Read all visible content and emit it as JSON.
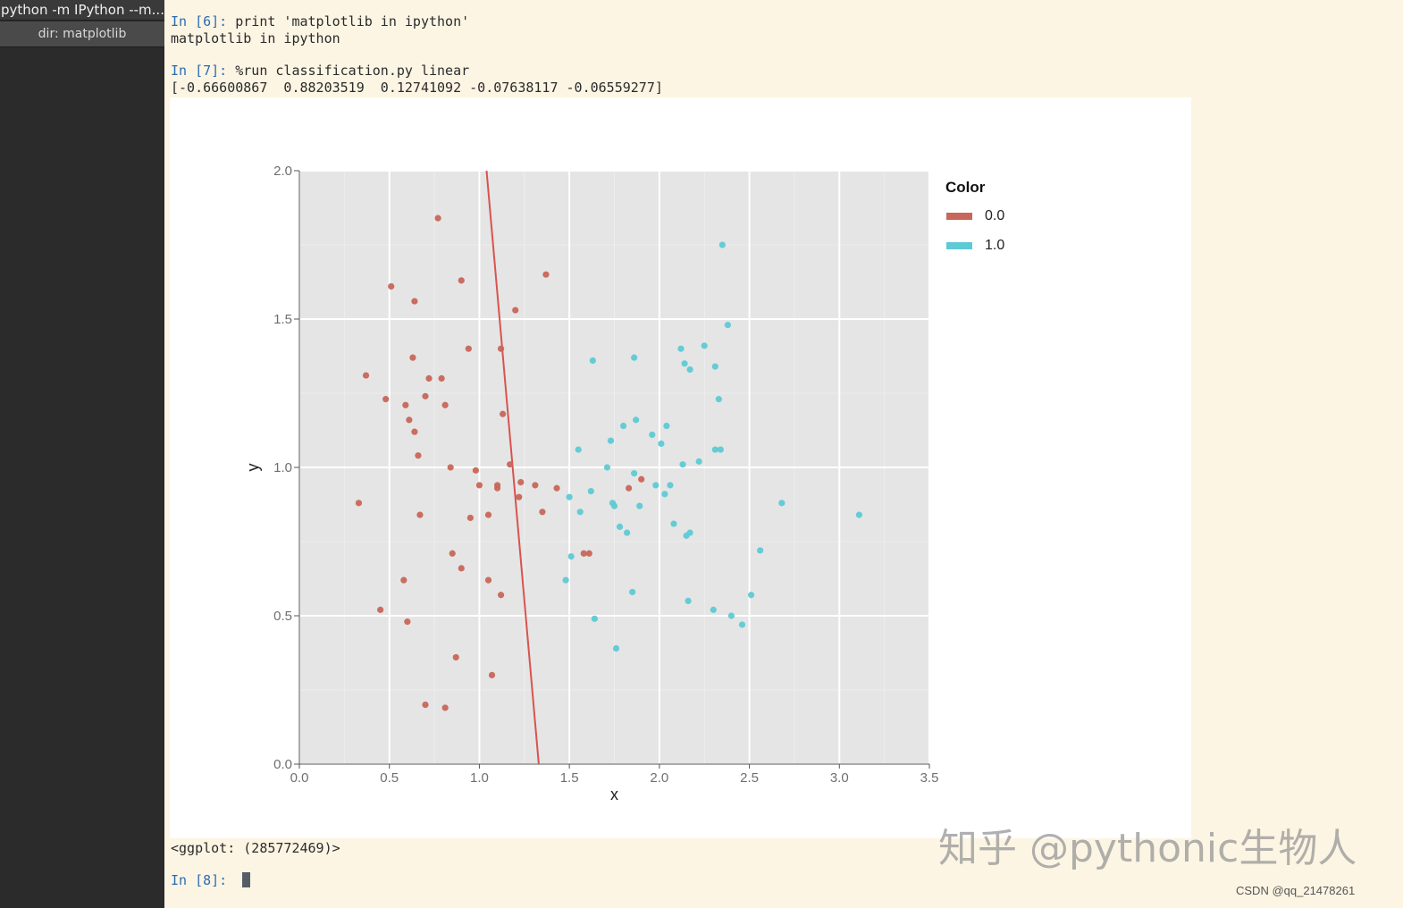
{
  "sidebar": {
    "tab_title": "python -m IPython --m...",
    "dir_label": "dir: matplotlib"
  },
  "console": {
    "lines": [
      {
        "prompt": "In [6]: ",
        "text": "print 'matplotlib in ipython'"
      },
      {
        "prompt": "",
        "text": "matplotlib in ipython"
      },
      {
        "prompt": "In [7]: ",
        "text": "%run classification.py linear"
      },
      {
        "prompt": "",
        "text": "[-0.66600867  0.88203519  0.12741092 -0.07638117 -0.06559277]"
      },
      {
        "prompt": "",
        "text": "<ggplot: (285772469)>"
      },
      {
        "prompt": "In [8]: ",
        "text": ""
      }
    ]
  },
  "chart_data": {
    "type": "scatter",
    "title": "",
    "xlabel": "x",
    "ylabel": "y",
    "xlim": [
      0,
      3.5
    ],
    "ylim": [
      0,
      2.0
    ],
    "x_ticks": [
      "0.0",
      "0.5",
      "1.0",
      "1.5",
      "2.0",
      "2.5",
      "3.0",
      "3.5"
    ],
    "y_ticks": [
      "0.0",
      "0.5",
      "1.0",
      "1.5",
      "2.0"
    ],
    "grid": true,
    "legend": {
      "title": "Color",
      "position": "right",
      "entries": [
        "0.0",
        "1.0"
      ]
    },
    "series": [
      {
        "name": "0.0",
        "color": "#c8665a",
        "points": [
          [
            0.33,
            0.88
          ],
          [
            0.37,
            1.31
          ],
          [
            0.45,
            0.52
          ],
          [
            0.48,
            1.23
          ],
          [
            0.51,
            1.61
          ],
          [
            0.58,
            0.62
          ],
          [
            0.59,
            1.21
          ],
          [
            0.6,
            0.48
          ],
          [
            0.61,
            1.16
          ],
          [
            0.63,
            1.37
          ],
          [
            0.64,
            1.12
          ],
          [
            0.64,
            1.56
          ],
          [
            0.66,
            1.04
          ],
          [
            0.67,
            0.84
          ],
          [
            0.7,
            0.2
          ],
          [
            0.7,
            1.24
          ],
          [
            0.72,
            1.3
          ],
          [
            0.77,
            1.84
          ],
          [
            0.79,
            1.3
          ],
          [
            0.81,
            1.21
          ],
          [
            0.81,
            0.19
          ],
          [
            0.84,
            1.0
          ],
          [
            0.85,
            0.71
          ],
          [
            0.87,
            0.36
          ],
          [
            0.9,
            0.66
          ],
          [
            0.9,
            1.63
          ],
          [
            0.94,
            1.4
          ],
          [
            0.95,
            0.83
          ],
          [
            0.98,
            0.99
          ],
          [
            1.0,
            0.94
          ],
          [
            1.05,
            0.84
          ],
          [
            1.05,
            0.62
          ],
          [
            1.07,
            0.3
          ],
          [
            1.1,
            0.94
          ],
          [
            1.1,
            0.93
          ],
          [
            1.12,
            1.4
          ],
          [
            1.12,
            0.57
          ],
          [
            1.13,
            1.18
          ],
          [
            1.17,
            1.01
          ],
          [
            1.2,
            1.53
          ],
          [
            1.22,
            0.9
          ],
          [
            1.23,
            0.95
          ],
          [
            1.31,
            0.94
          ],
          [
            1.35,
            0.85
          ],
          [
            1.37,
            1.65
          ],
          [
            1.43,
            0.93
          ],
          [
            1.58,
            0.71
          ],
          [
            1.61,
            0.71
          ],
          [
            1.83,
            0.93
          ],
          [
            1.9,
            0.96
          ]
        ]
      },
      {
        "name": "1.0",
        "color": "#5ecad4",
        "points": [
          [
            1.48,
            0.62
          ],
          [
            1.5,
            0.9
          ],
          [
            1.51,
            0.7
          ],
          [
            1.55,
            1.06
          ],
          [
            1.56,
            0.85
          ],
          [
            1.62,
            0.92
          ],
          [
            1.63,
            1.36
          ],
          [
            1.64,
            0.49
          ],
          [
            1.71,
            1.0
          ],
          [
            1.73,
            1.09
          ],
          [
            1.74,
            0.88
          ],
          [
            1.75,
            0.87
          ],
          [
            1.76,
            0.39
          ],
          [
            1.78,
            0.8
          ],
          [
            1.8,
            1.14
          ],
          [
            1.82,
            0.78
          ],
          [
            1.85,
            0.58
          ],
          [
            1.86,
            1.37
          ],
          [
            1.86,
            0.98
          ],
          [
            1.87,
            1.16
          ],
          [
            1.89,
            0.87
          ],
          [
            1.96,
            1.11
          ],
          [
            1.98,
            0.94
          ],
          [
            2.01,
            1.08
          ],
          [
            2.03,
            0.91
          ],
          [
            2.04,
            1.14
          ],
          [
            2.06,
            0.94
          ],
          [
            2.08,
            0.81
          ],
          [
            2.12,
            1.4
          ],
          [
            2.13,
            1.01
          ],
          [
            2.14,
            1.35
          ],
          [
            2.15,
            0.77
          ],
          [
            2.16,
            0.55
          ],
          [
            2.17,
            0.78
          ],
          [
            2.17,
            1.33
          ],
          [
            2.22,
            1.02
          ],
          [
            2.25,
            1.41
          ],
          [
            2.3,
            0.52
          ],
          [
            2.31,
            1.06
          ],
          [
            2.31,
            1.34
          ],
          [
            2.33,
            1.23
          ],
          [
            2.34,
            1.06
          ],
          [
            2.35,
            1.75
          ],
          [
            2.38,
            1.48
          ],
          [
            2.4,
            0.5
          ],
          [
            2.46,
            0.47
          ],
          [
            2.51,
            0.57
          ],
          [
            2.56,
            0.72
          ],
          [
            2.68,
            0.88
          ],
          [
            3.11,
            0.84
          ]
        ]
      }
    ],
    "decision_line": {
      "color": "#d9534f",
      "points": [
        [
          1.04,
          2.0
        ],
        [
          1.33,
          0.0
        ]
      ]
    }
  },
  "watermark": "知乎 @pythonic生物人",
  "credit": "CSDN @qq_21478261"
}
